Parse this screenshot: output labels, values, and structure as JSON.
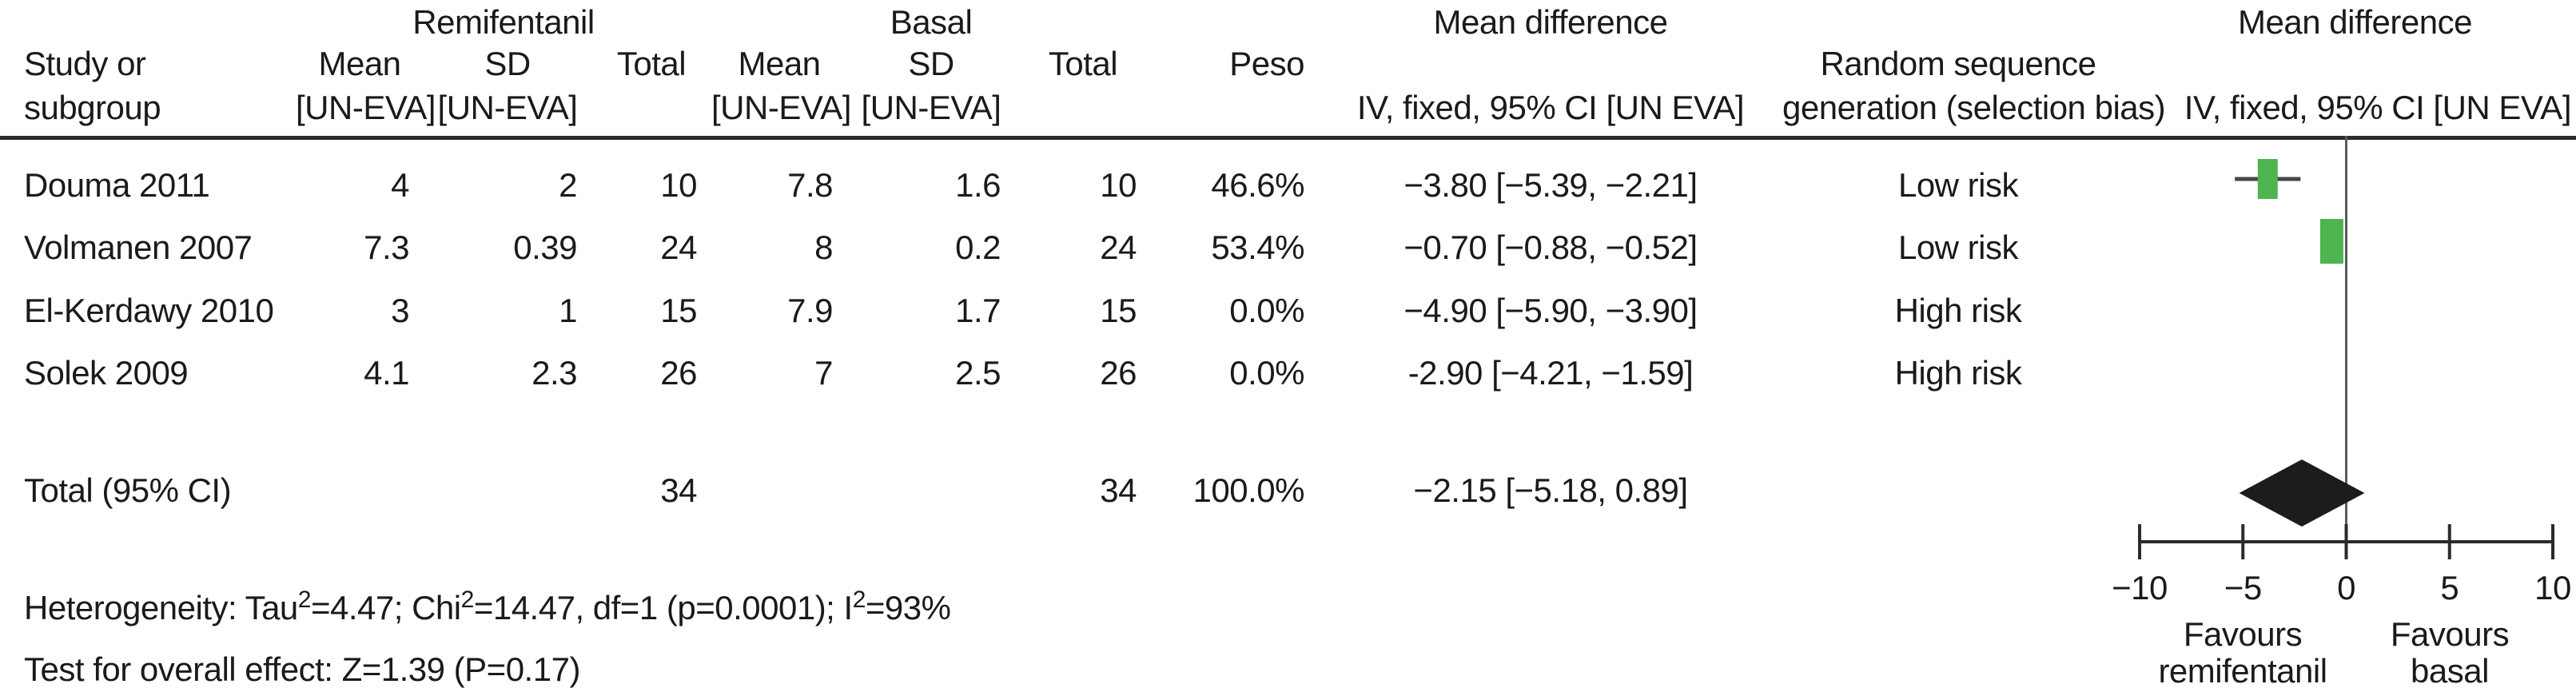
{
  "header": {
    "study_line1": "Study or",
    "study_line2": "subgroup",
    "group_remifentanil": "Remifentanil",
    "group_basal": "Basal",
    "group_mean_difference_left": "Mean difference",
    "group_mean_difference_right": "Mean difference",
    "col_mean": "Mean",
    "col_sd": "SD",
    "col_total": "Total",
    "col_unit": "[UN-EVA]",
    "col_peso": "Peso",
    "ci_subheader": "IV, fixed, 95% CI [UN EVA]",
    "risk_line1": "Random sequence",
    "risk_line2": "generation (selection bias)",
    "plot_subheader": "IV, fixed, 95% CI [UN EVA]"
  },
  "footer": {
    "heterogeneity_parts": [
      "Heterogeneity: Tau",
      "2",
      "=4.47; Chi",
      "2",
      "=14.47, df=1 (p=0.0001); I",
      "2",
      "=93%"
    ],
    "overall_effect": "Test for overall effect: Z=1.39 (P=0.17)"
  },
  "colors": {
    "marker": "#4db44f",
    "diamond": "#1c1c1c",
    "lines": "#2b2b2b",
    "ci_line": "#474747",
    "zero_line": "#595a5e"
  },
  "chart_data": {
    "type": "forest",
    "effect_measure": "Mean difference, IV, fixed, 95% CI",
    "studies": [
      {
        "name": "Douma 2011",
        "mean_remi": "4",
        "sd_remi": "2",
        "total_remi": "10",
        "mean_basal": "7.8",
        "sd_basal": "1.6",
        "total_basal": "10",
        "weight": "46.6%",
        "weight_value": 46.6,
        "ci_label": "−3.80 [−5.39, −2.21]",
        "estimate": -3.8,
        "ci_low": -5.39,
        "ci_high": -2.21,
        "risk": "Low risk",
        "plotted": true
      },
      {
        "name": "Volmanen 2007",
        "mean_remi": "7.3",
        "sd_remi": "0.39",
        "total_remi": "24",
        "mean_basal": "8",
        "sd_basal": "0.2",
        "total_basal": "24",
        "weight": "53.4%",
        "weight_value": 53.4,
        "ci_label": "−0.70 [−0.88, −0.52]",
        "estimate": -0.7,
        "ci_low": -0.88,
        "ci_high": -0.52,
        "risk": "Low risk",
        "plotted": true
      },
      {
        "name": "El-Kerdawy 2010",
        "mean_remi": "3",
        "sd_remi": "1",
        "total_remi": "15",
        "mean_basal": "7.9",
        "sd_basal": "1.7",
        "total_basal": "15",
        "weight": "0.0%",
        "weight_value": 0,
        "ci_label": "−4.90 [−5.90, −3.90]",
        "estimate": -4.9,
        "ci_low": -5.9,
        "ci_high": -3.9,
        "risk": "High risk",
        "plotted": false
      },
      {
        "name": "Solek 2009",
        "mean_remi": "4.1",
        "sd_remi": "2.3",
        "total_remi": "26",
        "mean_basal": "7",
        "sd_basal": "2.5",
        "total_basal": "26",
        "weight": "0.0%",
        "weight_value": 0,
        "ci_label": "-2.90 [−4.21, −1.59]",
        "estimate": -2.9,
        "ci_low": -4.21,
        "ci_high": -1.59,
        "risk": "High risk",
        "plotted": false
      }
    ],
    "total": {
      "label": "Total (95% CI)",
      "total_remi": "34",
      "total_basal": "34",
      "weight": "100.0%",
      "ci_label": "−2.15 [−5.18, 0.89]",
      "estimate": -2.15,
      "ci_low": -5.18,
      "ci_high": 0.89
    },
    "axis": {
      "min": -10,
      "max": 10,
      "ticks": [
        -10,
        -5,
        0,
        5,
        10
      ],
      "tick_labels": [
        "−10",
        "−5",
        "0",
        "5",
        "10"
      ],
      "label_left_line1": "Favours",
      "label_left_line2": "remifentanil",
      "label_right_line1": "Favours",
      "label_right_line2": "basal"
    }
  }
}
